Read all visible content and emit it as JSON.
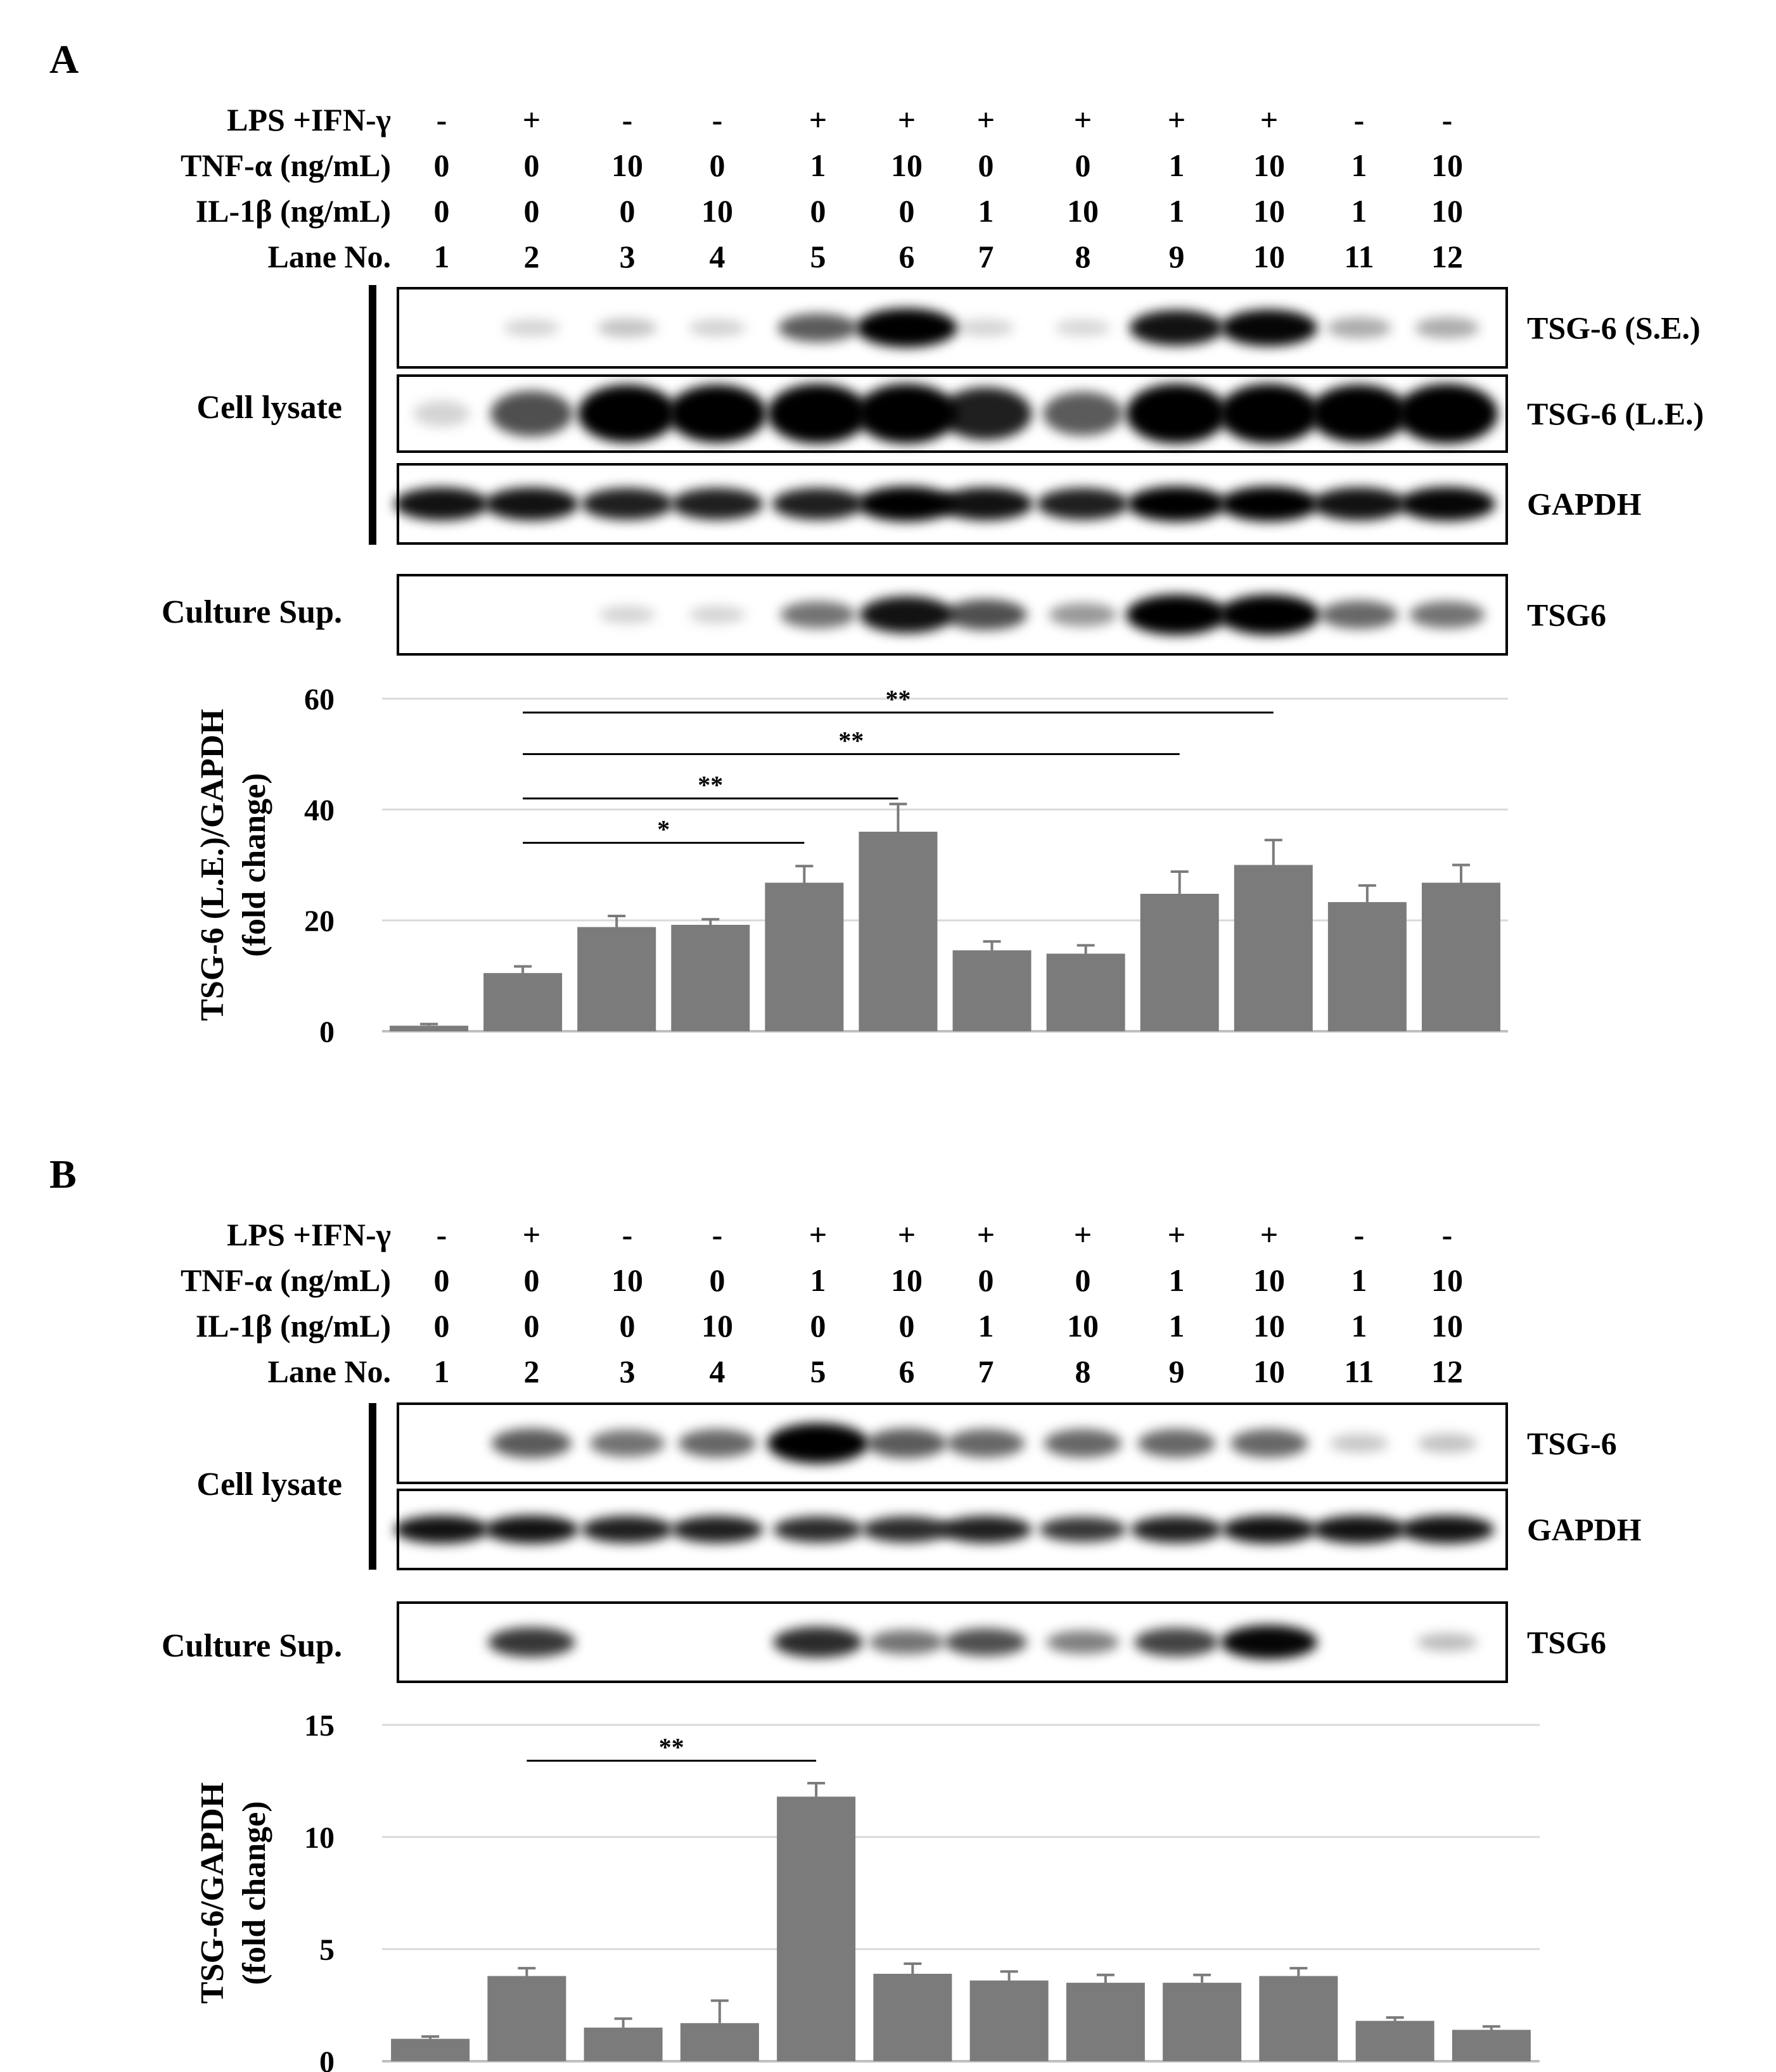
{
  "panels": [
    {
      "letter": "A",
      "rows": [
        {
          "label": "LPS +IFN-γ",
          "values": [
            "-",
            "+",
            "-",
            "-",
            "+",
            "+",
            "+",
            "+",
            "+",
            "+",
            "-",
            "-"
          ]
        },
        {
          "label": "TNF-α (ng/mL)",
          "values": [
            "0",
            "0",
            "10",
            "0",
            "1",
            "10",
            "0",
            "0",
            "1",
            "10",
            "1",
            "10"
          ]
        },
        {
          "label": "IL-1β (ng/mL)",
          "values": [
            "0",
            "0",
            "0",
            "10",
            "0",
            "0",
            "1",
            "10",
            "1",
            "10",
            "1",
            "10"
          ]
        },
        {
          "label": "Lane No.",
          "values": [
            "1",
            "2",
            "3",
            "4",
            "5",
            "6",
            "7",
            "8",
            "9",
            "10",
            "11",
            "12"
          ]
        }
      ],
      "cell_lysate_label": "Cell lysate",
      "culture_sup_label": "Culture Sup.",
      "blots": [
        {
          "label": "TSG-6 (S.E.)",
          "intensities": [
            0.0,
            0.05,
            0.12,
            0.06,
            0.55,
            1.0,
            0.05,
            0.04,
            0.85,
            0.9,
            0.22,
            0.22
          ]
        },
        {
          "label": "TSG-6 (L.E.)",
          "intensities": [
            0.05,
            0.6,
            0.95,
            0.95,
            1.0,
            1.0,
            0.8,
            0.55,
            1.0,
            1.0,
            0.95,
            1.0
          ]
        },
        {
          "label": "GAPDH",
          "intensities": [
            0.85,
            0.85,
            0.8,
            0.8,
            0.8,
            0.95,
            0.85,
            0.8,
            0.95,
            0.95,
            0.85,
            0.9
          ]
        },
        {
          "label": "TSG6",
          "intensities": [
            0.0,
            0.0,
            0.05,
            0.05,
            0.45,
            0.85,
            0.6,
            0.3,
            1.0,
            1.0,
            0.5,
            0.45
          ]
        }
      ],
      "chart_data": {
        "type": "bar",
        "ylabel": [
          "TSG-6 (L.E.)/GAPDH",
          "(fold change)"
        ],
        "ylim": [
          0,
          60
        ],
        "yticks": [
          0,
          20,
          40,
          60
        ],
        "grid": true,
        "categories": [
          "1",
          "2",
          "3",
          "4",
          "5",
          "6",
          "7",
          "8",
          "9",
          "10",
          "11",
          "12"
        ],
        "values": [
          1,
          10.5,
          18.8,
          19.2,
          26.8,
          36.0,
          14.6,
          14.0,
          24.8,
          30.0,
          23.3,
          26.8
        ],
        "errors": [
          0.3,
          1.2,
          2.0,
          1.0,
          3.0,
          5.0,
          1.6,
          1.5,
          4.0,
          4.5,
          3.0,
          3.2
        ],
        "significance": [
          {
            "from": 2,
            "to": 5,
            "label": "*",
            "y": 34
          },
          {
            "from": 2,
            "to": 6,
            "label": "**",
            "y": 42
          },
          {
            "from": 2,
            "to": 9,
            "label": "**",
            "y": 50
          },
          {
            "from": 2,
            "to": 10,
            "label": "**",
            "y": 57.5
          }
        ]
      }
    },
    {
      "letter": "B",
      "rows": [
        {
          "label": "LPS +IFN-γ",
          "values": [
            "-",
            "+",
            "-",
            "-",
            "+",
            "+",
            "+",
            "+",
            "+",
            "+",
            "-",
            "-"
          ]
        },
        {
          "label": "TNF-α (ng/mL)",
          "values": [
            "0",
            "0",
            "10",
            "0",
            "1",
            "10",
            "0",
            "0",
            "1",
            "10",
            "1",
            "10"
          ]
        },
        {
          "label": "IL-1β (ng/mL)",
          "values": [
            "0",
            "0",
            "0",
            "10",
            "0",
            "0",
            "1",
            "10",
            "1",
            "10",
            "1",
            "10"
          ]
        },
        {
          "label": "Lane No.",
          "values": [
            "1",
            "2",
            "3",
            "4",
            "5",
            "6",
            "7",
            "8",
            "9",
            "10",
            "11",
            "12"
          ]
        }
      ],
      "cell_lysate_label": "Cell lysate",
      "culture_sup_label": "Culture Sup.",
      "blots": [
        {
          "label": "TSG-6",
          "intensities": [
            0.0,
            0.55,
            0.45,
            0.5,
            1.0,
            0.55,
            0.5,
            0.5,
            0.5,
            0.5,
            0.1,
            0.12
          ]
        },
        {
          "label": "GAPDH",
          "intensities": [
            0.85,
            0.85,
            0.8,
            0.8,
            0.75,
            0.75,
            0.8,
            0.7,
            0.8,
            0.85,
            0.85,
            0.85
          ]
        },
        {
          "label": "TSG6",
          "intensities": [
            0.0,
            0.7,
            0.0,
            0.0,
            0.75,
            0.45,
            0.6,
            0.4,
            0.65,
            0.9,
            0.0,
            0.15
          ]
        }
      ],
      "chart_data": {
        "type": "bar",
        "ylabel": [
          "TSG-6/GAPDH",
          "(fold change)"
        ],
        "ylim": [
          0,
          15
        ],
        "yticks": [
          0,
          5,
          10,
          15
        ],
        "grid": true,
        "categories": [
          "1",
          "2",
          "3",
          "4",
          "5",
          "6",
          "7",
          "8",
          "9",
          "10",
          "11",
          "12"
        ],
        "values": [
          1,
          3.8,
          1.5,
          1.7,
          11.8,
          3.9,
          3.6,
          3.5,
          3.5,
          3.8,
          1.8,
          1.4
        ],
        "errors": [
          0.1,
          0.35,
          0.4,
          1.0,
          0.6,
          0.45,
          0.4,
          0.35,
          0.35,
          0.35,
          0.15,
          0.15
        ],
        "significance": [
          {
            "from": 2,
            "to": 5,
            "label": "**",
            "y": 13.4
          }
        ]
      }
    }
  ],
  "colors": {
    "bar": "#7b7b7b",
    "band": "#000000",
    "grid": "#d9d9d9"
  }
}
